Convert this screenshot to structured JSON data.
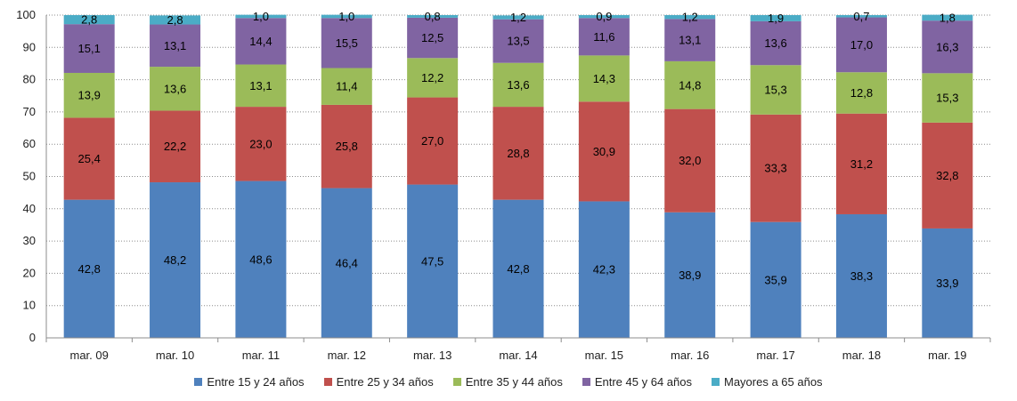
{
  "chart_data": {
    "type": "bar",
    "stacked": true,
    "categories": [
      "mar. 09",
      "mar. 10",
      "mar. 11",
      "mar. 12",
      "mar. 13",
      "mar. 14",
      "mar. 15",
      "mar. 16",
      "mar. 17",
      "mar. 18",
      "mar. 19"
    ],
    "series": [
      {
        "name": "Entre 15 y 24 años",
        "color": "#4F81BD",
        "values": [
          42.8,
          48.2,
          48.6,
          46.4,
          47.5,
          42.8,
          42.3,
          38.9,
          35.9,
          38.3,
          33.9
        ],
        "labels": [
          "42,8",
          "48,2",
          "48,6",
          "46,4",
          "47,5",
          "42,8",
          "42,3",
          "38,9",
          "35,9",
          "38,3",
          "33,9"
        ]
      },
      {
        "name": "Entre 25 y 34 años",
        "color": "#C0504D",
        "values": [
          25.4,
          22.2,
          23.0,
          25.8,
          27.0,
          28.8,
          30.9,
          32.0,
          33.3,
          31.2,
          32.8
        ],
        "labels": [
          "25,4",
          "22,2",
          "23,0",
          "25,8",
          "27,0",
          "28,8",
          "30,9",
          "32,0",
          "33,3",
          "31,2",
          "32,8"
        ]
      },
      {
        "name": "Entre 35 y 44 años",
        "color": "#9BBB59",
        "values": [
          13.9,
          13.6,
          13.1,
          11.4,
          12.2,
          13.6,
          14.3,
          14.8,
          15.3,
          12.8,
          15.3
        ],
        "labels": [
          "13,9",
          "13,6",
          "13,1",
          "11,4",
          "12,2",
          "13,6",
          "14,3",
          "14,8",
          "15,3",
          "12,8",
          "15,3"
        ]
      },
      {
        "name": "Entre 45 y 64 años",
        "color": "#8064A2",
        "values": [
          15.1,
          13.1,
          14.4,
          15.5,
          12.5,
          13.5,
          11.6,
          13.1,
          13.6,
          17.0,
          16.3
        ],
        "labels": [
          "15,1",
          "13,1",
          "14,4",
          "15,5",
          "12,5",
          "13,5",
          "11,6",
          "13,1",
          "13,6",
          "17,0",
          "16,3"
        ]
      },
      {
        "name": "Mayores a 65 años",
        "color": "#4BACC6",
        "values": [
          2.8,
          2.8,
          1.0,
          1.0,
          0.8,
          1.2,
          0.9,
          1.2,
          1.9,
          0.7,
          1.8
        ],
        "labels": [
          "2,8",
          "2,8",
          "1,0",
          "1,0",
          "0,8",
          "1,2",
          "0,9",
          "1,2",
          "1,9",
          "0,7",
          "1,8"
        ]
      }
    ],
    "yticks": [
      "0",
      "10",
      "20",
      "30",
      "40",
      "50",
      "60",
      "70",
      "80",
      "90",
      "100"
    ],
    "ylim": [
      0,
      100
    ],
    "grid": true,
    "legend_position": "bottom",
    "title": "",
    "xlabel": "",
    "ylabel": ""
  }
}
